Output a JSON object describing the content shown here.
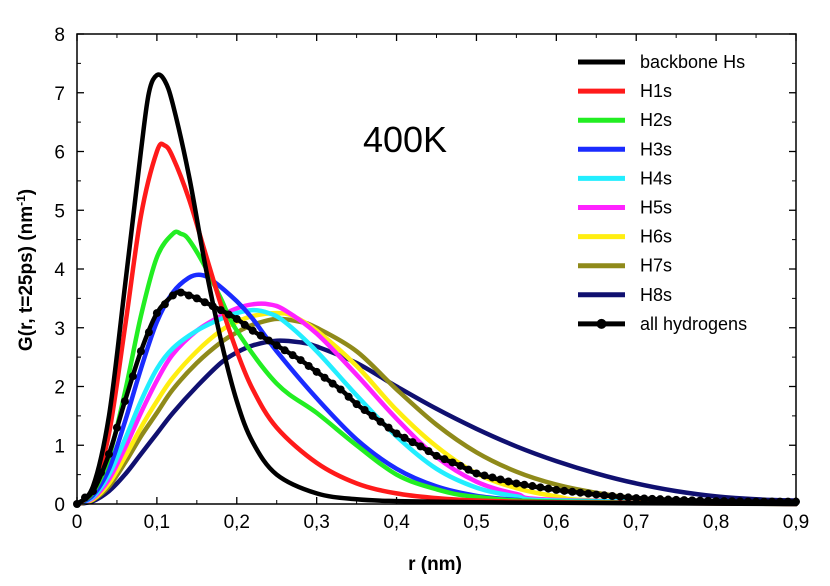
{
  "chart_data": {
    "type": "line",
    "title": "",
    "annotation": "400K",
    "xlabel": "r (nm)",
    "ylabel_main": "G(r, t=25ps) (nm",
    "ylabel_sup": "-1",
    "ylabel_close": ")",
    "xlim": [
      0,
      0.9
    ],
    "ylim": [
      0,
      8
    ],
    "xticks": [
      0,
      0.1,
      0.2,
      0.3,
      0.4,
      0.5,
      0.6,
      0.7,
      0.8,
      0.9
    ],
    "xtick_labels": [
      "0",
      "0,1",
      "0,2",
      "0,3",
      "0,4",
      "0,5",
      "0,6",
      "0,7",
      "0,8",
      "0,9"
    ],
    "yticks": [
      0,
      1,
      2,
      3,
      4,
      5,
      6,
      7,
      8
    ],
    "ytick_labels": [
      "0",
      "1",
      "2",
      "3",
      "4",
      "5",
      "6",
      "7",
      "8"
    ],
    "legend_position": "top-right",
    "series": [
      {
        "name": "backbone Hs",
        "color": "#000000",
        "markers": false,
        "points": [
          [
            0,
            0
          ],
          [
            0.02,
            0.3
          ],
          [
            0.04,
            1.5
          ],
          [
            0.06,
            3.7
          ],
          [
            0.08,
            6.0
          ],
          [
            0.09,
            7.0
          ],
          [
            0.1,
            7.3
          ],
          [
            0.11,
            7.2
          ],
          [
            0.12,
            6.8
          ],
          [
            0.14,
            5.6
          ],
          [
            0.16,
            4.1
          ],
          [
            0.18,
            2.8
          ],
          [
            0.2,
            1.75
          ],
          [
            0.22,
            1.05
          ],
          [
            0.25,
            0.5
          ],
          [
            0.3,
            0.18
          ],
          [
            0.35,
            0.08
          ],
          [
            0.4,
            0.05
          ],
          [
            0.5,
            0.03
          ],
          [
            0.6,
            0.02
          ],
          [
            0.9,
            0.0
          ]
        ]
      },
      {
        "name": "H1s",
        "color": "#ff1a1a",
        "markers": false,
        "points": [
          [
            0,
            0
          ],
          [
            0.02,
            0.25
          ],
          [
            0.04,
            1.2
          ],
          [
            0.06,
            3.0
          ],
          [
            0.08,
            4.9
          ],
          [
            0.1,
            6.0
          ],
          [
            0.11,
            6.1
          ],
          [
            0.12,
            5.9
          ],
          [
            0.14,
            5.2
          ],
          [
            0.16,
            4.3
          ],
          [
            0.18,
            3.4
          ],
          [
            0.2,
            2.6
          ],
          [
            0.22,
            1.95
          ],
          [
            0.25,
            1.3
          ],
          [
            0.3,
            0.7
          ],
          [
            0.35,
            0.35
          ],
          [
            0.4,
            0.18
          ],
          [
            0.45,
            0.1
          ],
          [
            0.5,
            0.06
          ],
          [
            0.6,
            0.03
          ],
          [
            0.9,
            0.0
          ]
        ]
      },
      {
        "name": "H2s",
        "color": "#22ee22",
        "markers": false,
        "points": [
          [
            0,
            0
          ],
          [
            0.02,
            0.2
          ],
          [
            0.04,
            0.8
          ],
          [
            0.06,
            1.9
          ],
          [
            0.08,
            3.2
          ],
          [
            0.1,
            4.2
          ],
          [
            0.12,
            4.6
          ],
          [
            0.13,
            4.6
          ],
          [
            0.14,
            4.5
          ],
          [
            0.16,
            4.05
          ],
          [
            0.18,
            3.5
          ],
          [
            0.2,
            2.95
          ],
          [
            0.25,
            2.05
          ],
          [
            0.3,
            1.55
          ],
          [
            0.35,
            1.0
          ],
          [
            0.4,
            0.5
          ],
          [
            0.45,
            0.25
          ],
          [
            0.5,
            0.12
          ],
          [
            0.6,
            0.04
          ],
          [
            0.9,
            0.0
          ]
        ]
      },
      {
        "name": "H3s",
        "color": "#1a2bff",
        "markers": false,
        "points": [
          [
            0,
            0
          ],
          [
            0.02,
            0.15
          ],
          [
            0.04,
            0.6
          ],
          [
            0.06,
            1.4
          ],
          [
            0.08,
            2.3
          ],
          [
            0.1,
            3.1
          ],
          [
            0.12,
            3.6
          ],
          [
            0.14,
            3.85
          ],
          [
            0.155,
            3.9
          ],
          [
            0.17,
            3.8
          ],
          [
            0.2,
            3.45
          ],
          [
            0.22,
            3.15
          ],
          [
            0.25,
            2.6
          ],
          [
            0.3,
            1.8
          ],
          [
            0.35,
            1.1
          ],
          [
            0.4,
            0.6
          ],
          [
            0.45,
            0.3
          ],
          [
            0.5,
            0.14
          ],
          [
            0.55,
            0.07
          ],
          [
            0.6,
            0.04
          ],
          [
            0.9,
            0.0
          ]
        ]
      },
      {
        "name": "H4s",
        "color": "#22eeff",
        "markers": false,
        "points": [
          [
            0,
            0
          ],
          [
            0.02,
            0.12
          ],
          [
            0.04,
            0.5
          ],
          [
            0.06,
            1.1
          ],
          [
            0.08,
            1.75
          ],
          [
            0.1,
            2.3
          ],
          [
            0.12,
            2.65
          ],
          [
            0.15,
            2.95
          ],
          [
            0.18,
            3.15
          ],
          [
            0.2,
            3.25
          ],
          [
            0.22,
            3.3
          ],
          [
            0.24,
            3.25
          ],
          [
            0.26,
            3.1
          ],
          [
            0.3,
            2.6
          ],
          [
            0.35,
            1.85
          ],
          [
            0.4,
            1.15
          ],
          [
            0.45,
            0.6
          ],
          [
            0.5,
            0.28
          ],
          [
            0.55,
            0.13
          ],
          [
            0.6,
            0.06
          ],
          [
            0.9,
            0.0
          ]
        ]
      },
      {
        "name": "H5s",
        "color": "#ff22ff",
        "markers": false,
        "points": [
          [
            0,
            0
          ],
          [
            0.02,
            0.1
          ],
          [
            0.04,
            0.42
          ],
          [
            0.06,
            0.95
          ],
          [
            0.08,
            1.55
          ],
          [
            0.1,
            2.1
          ],
          [
            0.12,
            2.55
          ],
          [
            0.15,
            2.95
          ],
          [
            0.18,
            3.2
          ],
          [
            0.2,
            3.33
          ],
          [
            0.22,
            3.4
          ],
          [
            0.24,
            3.4
          ],
          [
            0.26,
            3.3
          ],
          [
            0.3,
            2.9
          ],
          [
            0.35,
            2.2
          ],
          [
            0.4,
            1.45
          ],
          [
            0.45,
            0.8
          ],
          [
            0.5,
            0.38
          ],
          [
            0.55,
            0.17
          ],
          [
            0.6,
            0.07
          ],
          [
            0.9,
            0.0
          ]
        ]
      },
      {
        "name": "H6s",
        "color": "#ffee11",
        "markers": false,
        "points": [
          [
            0,
            0
          ],
          [
            0.02,
            0.08
          ],
          [
            0.04,
            0.35
          ],
          [
            0.06,
            0.8
          ],
          [
            0.08,
            1.3
          ],
          [
            0.1,
            1.75
          ],
          [
            0.12,
            2.15
          ],
          [
            0.15,
            2.6
          ],
          [
            0.18,
            2.95
          ],
          [
            0.2,
            3.1
          ],
          [
            0.22,
            3.2
          ],
          [
            0.25,
            3.25
          ],
          [
            0.27,
            3.2
          ],
          [
            0.3,
            2.95
          ],
          [
            0.35,
            2.35
          ],
          [
            0.4,
            1.6
          ],
          [
            0.45,
            0.98
          ],
          [
            0.5,
            0.52
          ],
          [
            0.55,
            0.27
          ],
          [
            0.6,
            0.13
          ],
          [
            0.65,
            0.06
          ],
          [
            0.9,
            0.0
          ]
        ]
      },
      {
        "name": "H7s",
        "color": "#8f8a1a",
        "markers": false,
        "points": [
          [
            0,
            0
          ],
          [
            0.02,
            0.07
          ],
          [
            0.04,
            0.3
          ],
          [
            0.06,
            0.7
          ],
          [
            0.08,
            1.15
          ],
          [
            0.1,
            1.55
          ],
          [
            0.12,
            1.95
          ],
          [
            0.15,
            2.4
          ],
          [
            0.18,
            2.75
          ],
          [
            0.2,
            2.92
          ],
          [
            0.22,
            3.05
          ],
          [
            0.25,
            3.15
          ],
          [
            0.28,
            3.1
          ],
          [
            0.3,
            3.0
          ],
          [
            0.35,
            2.6
          ],
          [
            0.4,
            1.95
          ],
          [
            0.45,
            1.35
          ],
          [
            0.5,
            0.88
          ],
          [
            0.55,
            0.55
          ],
          [
            0.6,
            0.33
          ],
          [
            0.65,
            0.19
          ],
          [
            0.7,
            0.1
          ],
          [
            0.8,
            0.03
          ],
          [
            0.9,
            0.0
          ]
        ]
      },
      {
        "name": "H8s",
        "color": "#101070",
        "markers": false,
        "points": [
          [
            0,
            0
          ],
          [
            0.02,
            0.05
          ],
          [
            0.04,
            0.22
          ],
          [
            0.06,
            0.5
          ],
          [
            0.08,
            0.85
          ],
          [
            0.1,
            1.2
          ],
          [
            0.12,
            1.55
          ],
          [
            0.15,
            2.0
          ],
          [
            0.18,
            2.4
          ],
          [
            0.2,
            2.58
          ],
          [
            0.22,
            2.7
          ],
          [
            0.25,
            2.78
          ],
          [
            0.28,
            2.75
          ],
          [
            0.3,
            2.68
          ],
          [
            0.35,
            2.4
          ],
          [
            0.4,
            2.0
          ],
          [
            0.45,
            1.62
          ],
          [
            0.5,
            1.28
          ],
          [
            0.55,
            0.98
          ],
          [
            0.6,
            0.73
          ],
          [
            0.65,
            0.52
          ],
          [
            0.7,
            0.35
          ],
          [
            0.75,
            0.22
          ],
          [
            0.8,
            0.13
          ],
          [
            0.85,
            0.08
          ],
          [
            0.9,
            0.06
          ]
        ]
      },
      {
        "name": "all hydrogens",
        "color": "#000000",
        "markers": true,
        "points": [
          [
            0,
            0
          ],
          [
            0.02,
            0.22
          ],
          [
            0.04,
            0.85
          ],
          [
            0.06,
            1.75
          ],
          [
            0.08,
            2.6
          ],
          [
            0.1,
            3.25
          ],
          [
            0.12,
            3.55
          ],
          [
            0.13,
            3.6
          ],
          [
            0.15,
            3.5
          ],
          [
            0.18,
            3.3
          ],
          [
            0.2,
            3.15
          ],
          [
            0.22,
            2.95
          ],
          [
            0.25,
            2.7
          ],
          [
            0.28,
            2.45
          ],
          [
            0.3,
            2.25
          ],
          [
            0.33,
            1.95
          ],
          [
            0.35,
            1.7
          ],
          [
            0.38,
            1.4
          ],
          [
            0.4,
            1.2
          ],
          [
            0.43,
            0.98
          ],
          [
            0.45,
            0.82
          ],
          [
            0.48,
            0.65
          ],
          [
            0.5,
            0.52
          ],
          [
            0.55,
            0.35
          ],
          [
            0.6,
            0.24
          ],
          [
            0.65,
            0.16
          ],
          [
            0.7,
            0.1
          ],
          [
            0.75,
            0.07
          ],
          [
            0.8,
            0.05
          ],
          [
            0.85,
            0.04
          ],
          [
            0.9,
            0.04
          ]
        ]
      }
    ]
  }
}
